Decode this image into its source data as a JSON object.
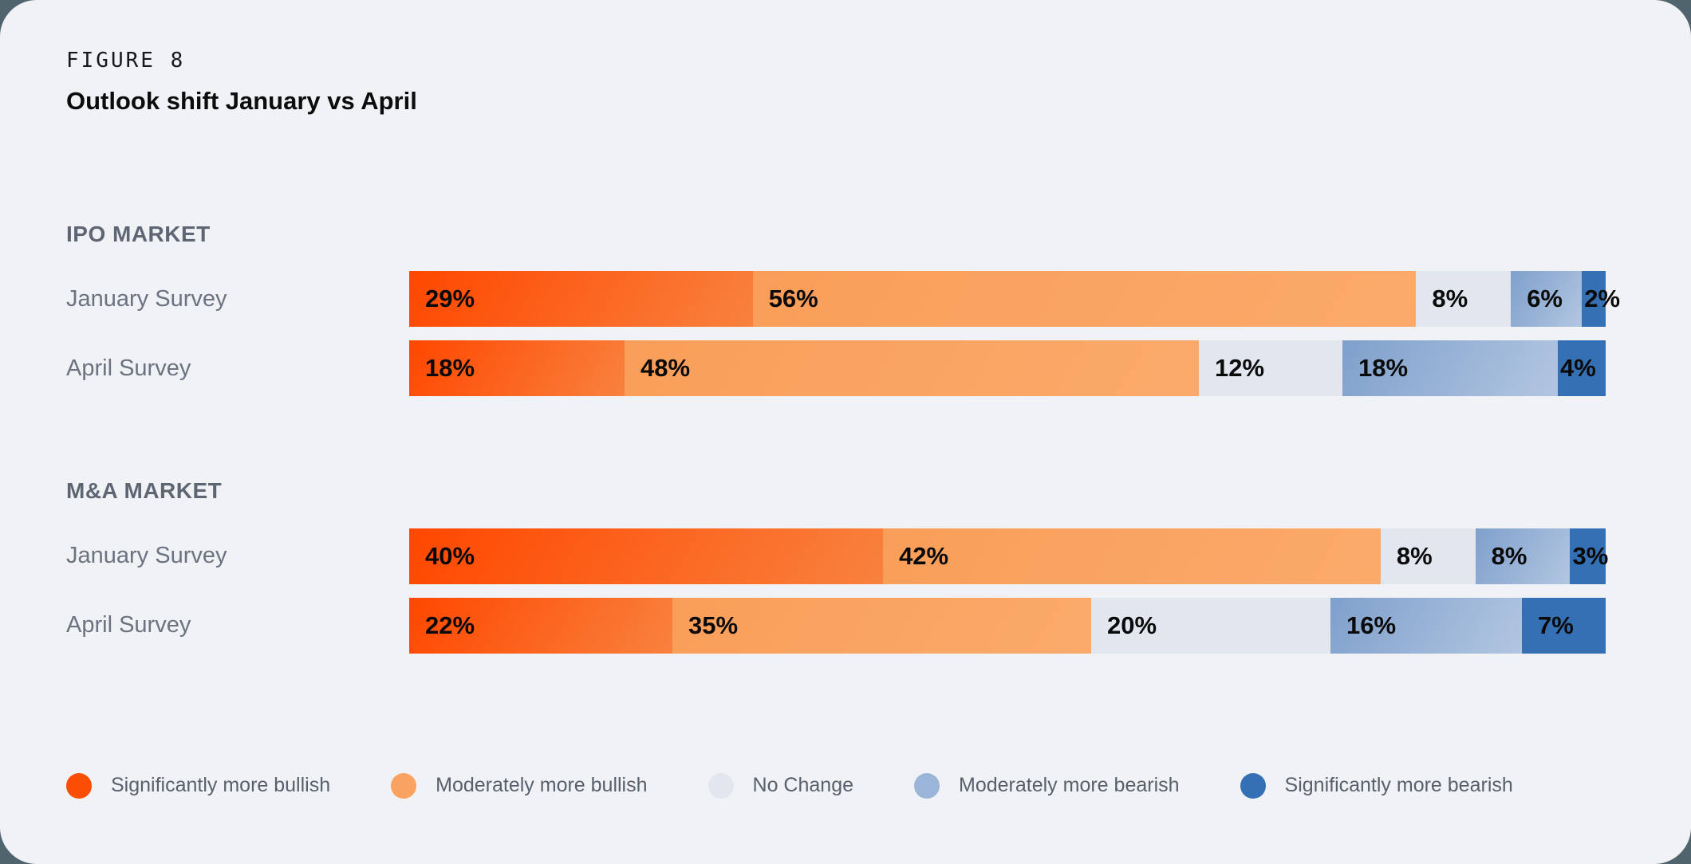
{
  "figure_label": "FIGURE 8",
  "title": "Outlook shift January vs April",
  "colors": {
    "page_background": "#4F646D",
    "card_background": "#F1F2F6",
    "section_title_text": "#5D6672",
    "row_label_text": "#6B7280",
    "percent_label_text": "#0A0A0A",
    "legend_label_text": "#58606C"
  },
  "chart_data": {
    "type": "bar",
    "stacked": true,
    "orientation": "horizontal",
    "unit": "%",
    "legend_position": "bottom",
    "series": [
      {
        "name": "Significantly more bullish",
        "fill_from": "#FF4700",
        "fill_to": "#F8823E",
        "dot": "#FB4D03"
      },
      {
        "name": "Moderately more bullish",
        "fill_from": "#F99E59",
        "fill_to": "#FBAA6B",
        "dot": "#FAA262"
      },
      {
        "name": "No Change",
        "fill_from": "#E2E6EF",
        "fill_to": "#E2E6EF",
        "dot": "#E2E6EF"
      },
      {
        "name": "Moderately more bearish",
        "fill_from": "#7FA0CC",
        "fill_to": "#B2C6E1",
        "dot": "#9AB5D8"
      },
      {
        "name": "Significantly more bearish",
        "fill_from": "#3570B4",
        "fill_to": "#3570B4",
        "dot": "#3570B4"
      }
    ],
    "groups": [
      {
        "title": "IPO MARKET",
        "rows": [
          {
            "label": "January Survey",
            "values": [
              29,
              56,
              8,
              6,
              2
            ]
          },
          {
            "label": "April Survey",
            "values": [
              18,
              48,
              12,
              18,
              4
            ]
          }
        ]
      },
      {
        "title": "M&A MARKET",
        "rows": [
          {
            "label": "January Survey",
            "values": [
              40,
              42,
              8,
              8,
              3
            ]
          },
          {
            "label": "April Survey",
            "values": [
              22,
              35,
              20,
              16,
              7
            ]
          }
        ]
      }
    ]
  }
}
